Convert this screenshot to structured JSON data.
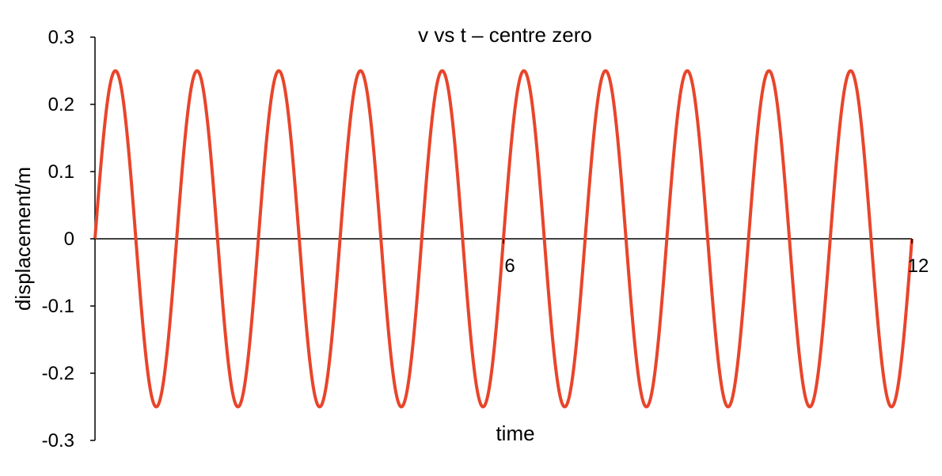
{
  "chart_data": {
    "type": "line",
    "title": "v vs t – centre zero",
    "xlabel": "time",
    "ylabel": "displacement/m",
    "xlim": [
      0,
      12
    ],
    "ylim": [
      -0.3,
      0.3
    ],
    "x_ticks": [
      6,
      12
    ],
    "y_ticks": [
      0.3,
      0.2,
      0.1,
      0,
      -0.1,
      -0.2,
      -0.3
    ],
    "x_tick_labels": [
      "6",
      "12"
    ],
    "y_tick_labels": [
      "0.3",
      "0.2",
      "0.1",
      "0",
      "-0.1",
      "-0.2",
      "-0.3"
    ],
    "grid": false,
    "legend": "none",
    "series": [
      {
        "color": "#e8452b",
        "x": [
          0,
          0.3,
          0.6,
          0.9,
          1.2,
          1.5,
          1.8,
          2.1,
          2.4,
          2.7,
          3,
          3.3,
          3.6,
          3.9,
          4.2,
          4.5,
          4.8,
          5.1,
          5.4,
          5.7,
          6,
          6.3,
          6.6,
          6.9,
          7.2,
          7.5,
          7.8,
          8.1,
          8.4,
          8.7,
          9,
          9.3,
          9.6,
          9.9,
          10.2,
          10.5,
          10.8,
          11.1,
          11.4,
          11.7,
          12
        ],
        "y": [
          0,
          0.25,
          0,
          -0.25,
          0,
          0.25,
          0,
          -0.25,
          0,
          0.25,
          0,
          -0.25,
          0,
          0.25,
          0,
          -0.25,
          0,
          0.25,
          0,
          -0.25,
          0,
          0.25,
          0,
          -0.25,
          0,
          0.25,
          0,
          -0.25,
          0,
          0.25,
          0,
          -0.25,
          0,
          0.25,
          0,
          -0.25,
          0,
          0.25,
          0,
          -0.25,
          0
        ]
      }
    ]
  }
}
